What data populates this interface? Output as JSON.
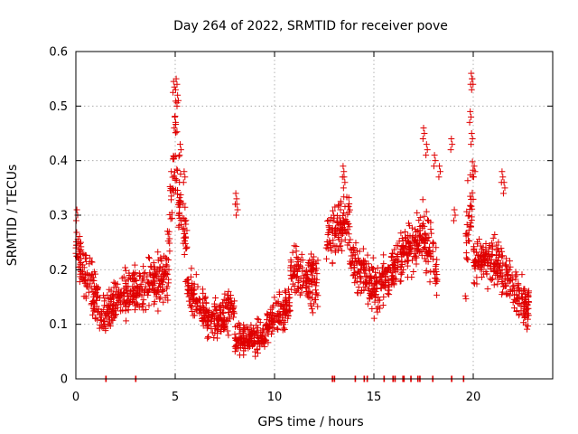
{
  "chart_data": {
    "type": "scatter",
    "title": "Day 264 of 2022, SRMTID for receiver pove",
    "xlabel": "GPS time / hours",
    "ylabel": "SRMTID / TECUs",
    "xlim": [
      0,
      24
    ],
    "ylim": [
      0,
      0.6
    ],
    "xticks": [
      0,
      5,
      10,
      15,
      20
    ],
    "yticks": [
      0,
      0.1,
      0.2,
      0.3,
      0.4,
      0.5,
      0.6
    ],
    "xtick_labels": [
      "0",
      "5",
      "10",
      "15",
      "20"
    ],
    "ytick_labels": [
      "0",
      "0.1",
      "0.2",
      "0.3",
      "0.4",
      "0.5",
      "0.6"
    ],
    "grid": true,
    "marker": "+",
    "color": "#e00000",
    "series": [
      {
        "name": "SRMTID",
        "segments": [
          {
            "t": [
              0.0,
              1.2
            ],
            "base": [
              0.24,
              0.13
            ],
            "spread": 0.07
          },
          {
            "t": [
              1.2,
              2.2
            ],
            "base": [
              0.11,
              0.15
            ],
            "spread": 0.05
          },
          {
            "t": [
              2.2,
              3.4
            ],
            "base": [
              0.15,
              0.17
            ],
            "spread": 0.06
          },
          {
            "t": [
              3.4,
              4.6
            ],
            "base": [
              0.17,
              0.19
            ],
            "spread": 0.06
          },
          {
            "t": [
              4.6,
              5.1
            ],
            "base": [
              0.22,
              0.45
            ],
            "spread": 0.12
          },
          {
            "t": [
              5.1,
              5.6
            ],
            "base": [
              0.35,
              0.24
            ],
            "spread": 0.1
          },
          {
            "t": [
              5.6,
              6.6
            ],
            "base": [
              0.16,
              0.12
            ],
            "spread": 0.06
          },
          {
            "t": [
              6.6,
              8.0
            ],
            "base": [
              0.1,
              0.13
            ],
            "spread": 0.05
          },
          {
            "t": [
              8.0,
              9.6
            ],
            "base": [
              0.07,
              0.08
            ],
            "spread": 0.04
          },
          {
            "t": [
              9.6,
              10.8
            ],
            "base": [
              0.1,
              0.14
            ],
            "spread": 0.05
          },
          {
            "t": [
              10.8,
              12.2
            ],
            "base": [
              0.2,
              0.18
            ],
            "spread": 0.07
          },
          {
            "t": [
              12.6,
              13.8
            ],
            "base": [
              0.25,
              0.3
            ],
            "spread": 0.07
          },
          {
            "t": [
              13.8,
              15.0
            ],
            "base": [
              0.22,
              0.17
            ],
            "spread": 0.06
          },
          {
            "t": [
              15.0,
              16.2
            ],
            "base": [
              0.16,
              0.2
            ],
            "spread": 0.06
          },
          {
            "t": [
              16.2,
              17.4
            ],
            "base": [
              0.22,
              0.26
            ],
            "spread": 0.07
          },
          {
            "t": [
              17.4,
              18.2
            ],
            "base": [
              0.27,
              0.2
            ],
            "spread": 0.08
          },
          {
            "t": [
              19.6,
              20.0
            ],
            "base": [
              0.22,
              0.35
            ],
            "spread": 0.12
          },
          {
            "t": [
              20.0,
              21.2
            ],
            "base": [
              0.22,
              0.21
            ],
            "spread": 0.06
          },
          {
            "t": [
              21.2,
              22.8
            ],
            "base": [
              0.21,
              0.13
            ],
            "spread": 0.06
          }
        ],
        "peaks": [
          {
            "t": 0.05,
            "v": 0.31
          },
          {
            "t": 4.92,
            "v": 0.545
          },
          {
            "t": 5.05,
            "v": 0.55
          },
          {
            "t": 5.12,
            "v": 0.52
          },
          {
            "t": 4.98,
            "v": 0.48
          },
          {
            "t": 5.25,
            "v": 0.43
          },
          {
            "t": 5.45,
            "v": 0.38
          },
          {
            "t": 8.05,
            "v": 0.34
          },
          {
            "t": 8.1,
            "v": 0.32
          },
          {
            "t": 13.45,
            "v": 0.39
          },
          {
            "t": 13.5,
            "v": 0.37
          },
          {
            "t": 17.5,
            "v": 0.46
          },
          {
            "t": 17.65,
            "v": 0.43
          },
          {
            "t": 18.05,
            "v": 0.41
          },
          {
            "t": 18.3,
            "v": 0.39
          },
          {
            "t": 18.9,
            "v": 0.44
          },
          {
            "t": 19.05,
            "v": 0.31
          },
          {
            "t": 19.9,
            "v": 0.56
          },
          {
            "t": 19.95,
            "v": 0.55
          },
          {
            "t": 19.85,
            "v": 0.49
          },
          {
            "t": 19.92,
            "v": 0.45
          },
          {
            "t": 20.05,
            "v": 0.39
          },
          {
            "t": 21.45,
            "v": 0.38
          },
          {
            "t": 21.55,
            "v": 0.36
          }
        ],
        "zeros": [
          1.5,
          3.0,
          12.9,
          13.0,
          14.05,
          14.5,
          14.65,
          15.5,
          15.95,
          16.05,
          16.45,
          16.5,
          16.85,
          17.2,
          17.3,
          17.95,
          18.9,
          19.5
        ]
      }
    ]
  }
}
